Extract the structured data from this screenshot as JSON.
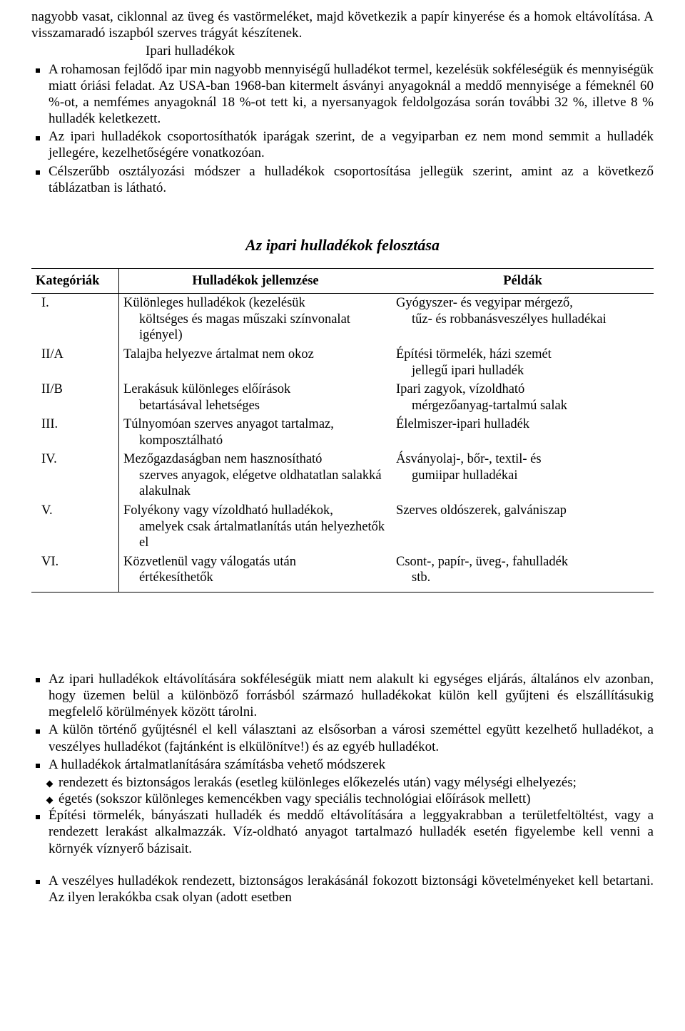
{
  "intro": {
    "p1": "nagyobb vasat, ciklonnal az üveg és vastörmeléket, majd következik a papír kinyerése és a homok eltávolítása. A visszamaradó iszapból szerves trágyát készítenek.",
    "p2": "Ipari hulladékok"
  },
  "list1": [
    "A rohamosan fejlődő ipar min nagyobb mennyiségű hulladékot termel, kezelésük sokféleségük és mennyiségük miatt óriási feladat. Az USA-ban 1968-ban kitermelt ásványi anyagoknál a meddő mennyisége a fémeknél 60 %-ot, a nemfémes anyagoknál 18 %-ot tett ki, a nyersanyagok feldolgozása során további  32 %, illetve 8 % hulladék keletkezett.",
    "Az ipari hulladékok csoportosíthatók iparágak szerint, de a vegyiparban ez nem mond semmit a hulladék jellegére, kezelhetőségére vonatkozóan.",
    "Célszerűbb osztályozási módszer a hulladékok csoportosítása jellegük szerint, amint az a következő táblázatban is látható."
  ],
  "table": {
    "title": "Az ipari hulladékok felosztása",
    "headers": [
      "Kategóriák",
      "Hulladékok jellemzése",
      "Példák"
    ],
    "rows": [
      {
        "cat": "I.",
        "desc_main": "Különleges hulladékok (kezelésük",
        "desc_wrap": "költséges és magas műszaki színvonalat igényel)",
        "ex_main": "Gyógyszer- és vegyipar mérgező,",
        "ex_wrap": "tűz- és robbanásveszélyes hulladékai"
      },
      {
        "cat": "II/A",
        "desc_main": "Talajba helyezve ártalmat nem okoz",
        "desc_wrap": "",
        "ex_main": "Építési törmelék, házi szemét",
        "ex_wrap": "jellegű ipari hulladék"
      },
      {
        "cat": "II/B",
        "desc_main": "Lerakásuk különleges előírások",
        "desc_wrap": "betartásával lehetséges",
        "ex_main": "Ipari zagyok, vízoldható",
        "ex_wrap": "mérgezőanyag-tartalmú salak"
      },
      {
        "cat": "III.",
        "desc_main": "Túlnyomóan szerves anyagot tartalmaz,",
        "desc_wrap": "komposztálható",
        "ex_main": "Élelmiszer-ipari hulladék",
        "ex_wrap": ""
      },
      {
        "cat": "IV.",
        "desc_main": "Mezőgazdaságban nem hasznosítható",
        "desc_wrap": "szerves anyagok, elégetve oldhatatlan salakká alakulnak",
        "ex_main": "Ásványolaj-, bőr-, textil- és",
        "ex_wrap": "gumiipar hulladékai"
      },
      {
        "cat": "V.",
        "desc_main": "Folyékony vagy vízoldható hulladékok,",
        "desc_wrap": "amelyek csak ártalmatlanítás után helyezhetők el",
        "ex_main": "Szerves oldószerek, galvániszap",
        "ex_wrap": ""
      },
      {
        "cat": "VI.",
        "desc_main": "Közvetlenül vagy válogatás után",
        "desc_wrap": "értékesíthetők",
        "ex_main": "Csont-, papír-, üveg-, fahulladék",
        "ex_wrap": "stb."
      }
    ]
  },
  "list2": [
    "Az ipari hulladékok eltávolítására sokféleségük miatt nem alakult ki egységes eljárás, általános elv azonban, hogy üzemen belül a különböző forrásból származó hulladékokat külön kell gyűjteni és elszállításukig megfelelő körülmények között tárolni.",
    "A külön történő gyűjtésnél el kell választani az elsősorban a városi szeméttel együtt kezelhető hulladékot, a veszélyes hulladékot (fajtánként is elkülönítve!) és az egyéb hulladékot.",
    "A hulladékok ártalmatlanítására  számításba vehető módszerek"
  ],
  "sublist": [
    "rendezett és biztonságos lerakás (esetleg különleges előkezelés után) vagy mélységi elhelyezés;",
    "égetés (sokszor különleges kemencékben vagy speciális technológiai előírások mellett)"
  ],
  "list3": [
    "Építési törmelék, bányászati hulladék és meddő eltávolítására a leggyakrabban a területfeltöltést, vagy a rendezett lerakást alkalmazzák. Víz-oldható anyagot tartalmazó hulladék esetén figyelembe kell venni a környék víznyerő bázisait."
  ],
  "list4": [
    "A veszélyes hulladékok rendezett, biztonságos lerakásánál fokozott biztonsági követelményeket kell betartani. Az ilyen lerakókba csak olyan (adott esetben"
  ]
}
